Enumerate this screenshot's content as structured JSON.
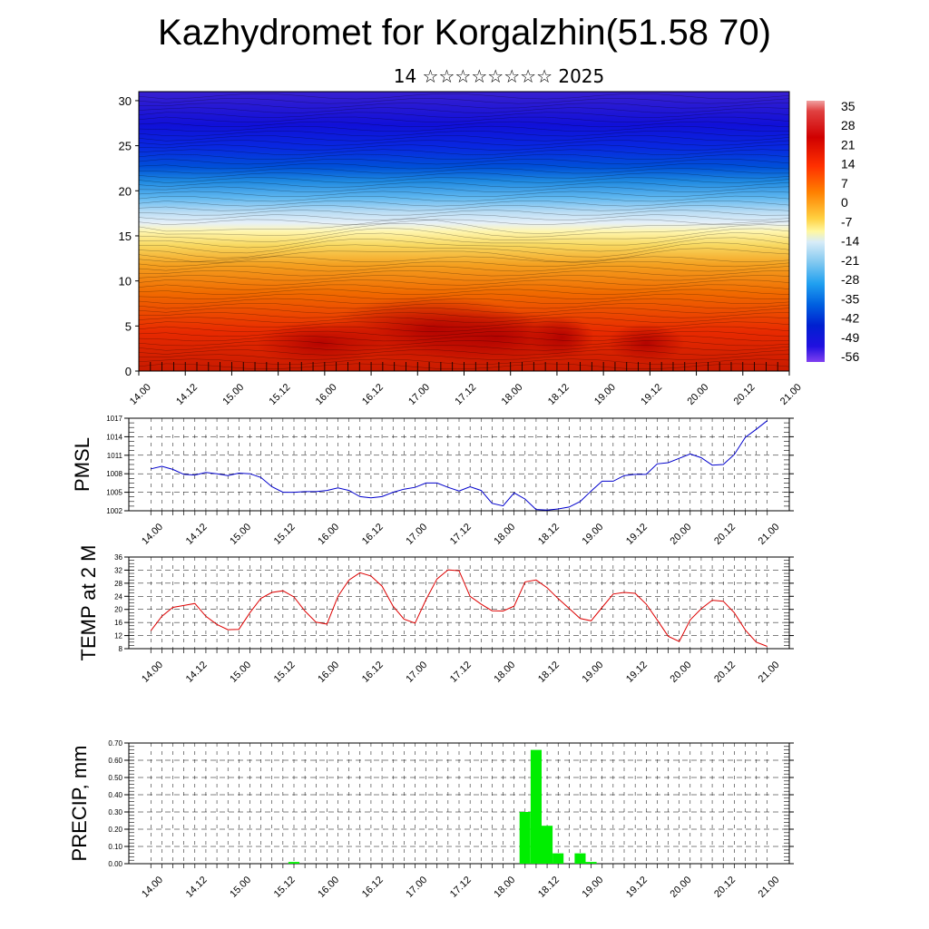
{
  "title": "Kazhydromet for Korgalzhin(51.58 70)",
  "subtitle": "14 ☆☆☆☆☆☆☆☆ 2025",
  "colors": {
    "pmsl_line": "#0000cc",
    "temp_line": "#dd0000",
    "precip_bar": "#00ee00"
  },
  "chart_data": [
    {
      "type": "heatmap",
      "description_id": "cross-section",
      "x_tick_labels": [
        "14.00",
        "14.12",
        "15.00",
        "15.12",
        "16.00",
        "16.12",
        "17.00",
        "17.12",
        "18.00",
        "18.12",
        "19.00",
        "19.12",
        "20.00",
        "20.12",
        "21.00"
      ],
      "y_tick_labels": [
        "0",
        "5",
        "10",
        "15",
        "20",
        "25",
        "30"
      ],
      "ylim": [
        0,
        31
      ],
      "colorbar_labels": [
        "35",
        "28",
        "21",
        "14",
        "7",
        "0",
        "-7",
        "-14",
        "-21",
        "-28",
        "-35",
        "-42",
        "-49",
        "-56"
      ],
      "colorbar_range": [
        -60,
        38
      ]
    },
    {
      "type": "line",
      "ylabel": "PMSL",
      "ylim": [
        1002,
        1017
      ],
      "y_ticks": [
        1002,
        1005,
        1008,
        1011,
        1014,
        1017
      ],
      "x_tick_labels": [
        "14.00",
        "14.12",
        "15.00",
        "15.12",
        "16.00",
        "16.12",
        "17.00",
        "17.12",
        "18.00",
        "18.12",
        "19.00",
        "19.12",
        "20.00",
        "20.12",
        "21.00"
      ],
      "x": [
        0,
        3,
        6,
        9,
        12,
        15,
        18,
        21,
        24,
        27,
        30,
        33,
        36,
        39,
        42,
        45,
        48,
        51,
        54,
        57,
        60,
        63,
        66,
        69,
        72,
        75,
        78,
        81,
        84,
        87,
        90,
        93,
        96,
        99,
        102,
        105,
        108,
        111,
        114,
        117,
        120,
        123,
        126,
        129,
        132,
        135,
        138,
        141,
        144,
        147,
        150,
        153,
        156,
        159,
        162,
        165,
        168
      ],
      "values": [
        1008.8,
        1009.2,
        1008.7,
        1007.9,
        1007.8,
        1008.2,
        1008.0,
        1007.7,
        1008.1,
        1008.0,
        1007.4,
        1005.9,
        1005.0,
        1005.0,
        1005.1,
        1005.1,
        1005.3,
        1005.7,
        1005.3,
        1004.3,
        1004.1,
        1004.3,
        1005.0,
        1005.5,
        1005.8,
        1006.5,
        1006.5,
        1005.8,
        1005.2,
        1005.9,
        1005.3,
        1003.2,
        1002.8,
        1004.9,
        1003.9,
        1002.2,
        1002.1,
        1002.3,
        1002.6,
        1003.5,
        1005.2,
        1006.8,
        1006.8,
        1007.7,
        1007.9,
        1007.9,
        1009.6,
        1009.8,
        1010.5,
        1011.2,
        1010.6,
        1009.4,
        1009.5,
        1011.1,
        1013.9,
        1015.2,
        1016.6
      ]
    },
    {
      "type": "line",
      "ylabel": "TEMP at 2 M",
      "ylim": [
        8,
        36
      ],
      "y_ticks": [
        8,
        12,
        16,
        20,
        24,
        28,
        32,
        36
      ],
      "x_tick_labels": [
        "14.00",
        "14.12",
        "15.00",
        "15.12",
        "16.00",
        "16.12",
        "17.00",
        "17.12",
        "18.00",
        "18.12",
        "19.00",
        "19.12",
        "20.00",
        "20.12",
        "21.00"
      ],
      "x": [
        0,
        3,
        6,
        9,
        12,
        15,
        18,
        21,
        24,
        27,
        30,
        33,
        36,
        39,
        42,
        45,
        48,
        51,
        54,
        57,
        60,
        63,
        66,
        69,
        72,
        75,
        78,
        81,
        84,
        87,
        90,
        93,
        96,
        99,
        102,
        105,
        108,
        111,
        114,
        117,
        120,
        123,
        126,
        129,
        132,
        135,
        138,
        141,
        144,
        147,
        150,
        153,
        156,
        159,
        162,
        165,
        168
      ],
      "values": [
        13.5,
        17.9,
        20.6,
        21.2,
        21.8,
        17.9,
        15.4,
        13.8,
        13.9,
        19.0,
        23.4,
        25.2,
        25.7,
        23.8,
        19.5,
        16.1,
        15.5,
        24.0,
        29.0,
        31.2,
        30.2,
        27.1,
        21.0,
        17.0,
        15.8,
        23.0,
        29.3,
        32.1,
        31.8,
        24.0,
        21.6,
        19.6,
        19.5,
        21.0,
        28.4,
        29.0,
        26.6,
        23.3,
        20.3,
        17.2,
        16.5,
        20.6,
        24.7,
        25.2,
        24.9,
        21.6,
        16.8,
        11.8,
        10.2,
        16.8,
        20.2,
        22.8,
        22.5,
        19.0,
        13.7,
        10.0,
        8.7
      ]
    },
    {
      "type": "bar",
      "ylabel": "PRECIP, mm",
      "ylim": [
        0,
        0.7
      ],
      "y_ticks": [
        "0.00",
        "0.10",
        "0.20",
        "0.30",
        "0.40",
        "0.50",
        "0.60",
        "0.70"
      ],
      "x_tick_labels": [
        "14.00",
        "14.12",
        "15.00",
        "15.12",
        "16.00",
        "16.12",
        "17.00",
        "17.12",
        "18.00",
        "18.12",
        "19.00",
        "19.12",
        "20.00",
        "20.12",
        "21.00"
      ],
      "bars": [
        {
          "x": 39,
          "value": 0.01
        },
        {
          "x": 102,
          "value": 0.3
        },
        {
          "x": 105,
          "value": 0.66
        },
        {
          "x": 108,
          "value": 0.22
        },
        {
          "x": 111,
          "value": 0.06
        },
        {
          "x": 117,
          "value": 0.06
        },
        {
          "x": 120,
          "value": 0.01
        }
      ]
    }
  ]
}
